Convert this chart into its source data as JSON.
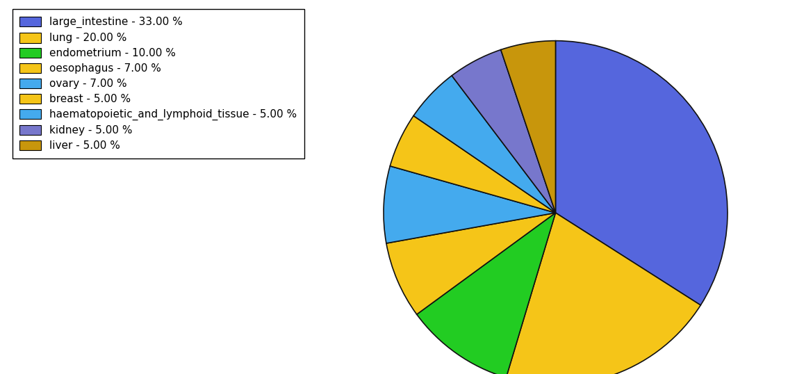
{
  "labels": [
    "large_intestine",
    "lung",
    "endometrium",
    "oesophagus",
    "ovary",
    "breast",
    "haematopoietic_and_lymphoid_tissue",
    "kidney",
    "liver"
  ],
  "values": [
    33,
    20,
    10,
    7,
    7,
    5,
    5,
    5,
    5
  ],
  "colors": [
    "#5566dd",
    "#f5c518",
    "#22cc22",
    "#f5c518",
    "#44aaee",
    "#f5c518",
    "#44aaee",
    "#7777cc",
    "#c8960c"
  ],
  "legend_labels": [
    "large_intestine - 33.00 %",
    "lung - 20.00 %",
    "endometrium - 10.00 %",
    "oesophagus - 7.00 %",
    "ovary - 7.00 %",
    "breast - 5.00 %",
    "haematopoietic_and_lymphoid_tissue - 5.00 %",
    "kidney - 5.00 %",
    "liver - 5.00 %"
  ],
  "figsize": [
    11.34,
    5.38
  ],
  "dpi": 100,
  "startangle": 90,
  "legend_fontsize": 11,
  "edge_color": "#111111",
  "edge_linewidth": 1.2
}
